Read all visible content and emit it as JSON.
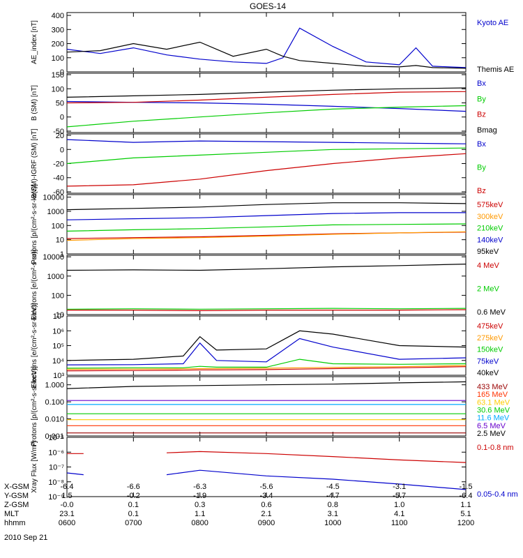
{
  "title": "GOES-14",
  "footer": {
    "rows": [
      {
        "label": "X-GSM",
        "values": [
          "-6.4",
          "-6.6",
          "-6.3",
          "-5.6",
          "-4.5",
          "-3.1",
          "-1.5"
        ]
      },
      {
        "label": "Y-GSM",
        "values": [
          "1.5",
          "-0.2",
          "-1.9",
          "-3.4",
          "-4.7",
          "-5.7",
          "-6.4"
        ]
      },
      {
        "label": "Z-GSM",
        "values": [
          "-0.0",
          "0.1",
          "0.3",
          "0.6",
          "0.8",
          "1.0",
          "1.1"
        ]
      },
      {
        "label": "MLT",
        "values": [
          "23.1",
          "0.1",
          "1.1",
          "2.1",
          "3.1",
          "4.1",
          "5.1"
        ]
      },
      {
        "label": "hhmm",
        "values": [
          "0600",
          "0700",
          "0800",
          "0900",
          "1000",
          "1100",
          "1200"
        ]
      }
    ],
    "date": "2010 Sep 21"
  },
  "chart_data": [
    {
      "type": "line",
      "ylabel": "AE_index [nT]",
      "yticks": [
        "400",
        "300",
        "200",
        "100",
        "0"
      ],
      "ylim": [
        0,
        420
      ],
      "x": [
        "0600",
        "0630",
        "0700",
        "0730",
        "0800",
        "0830",
        "0900",
        "0915",
        "0930",
        "1000",
        "1030",
        "1100",
        "1115",
        "1130",
        "1200"
      ],
      "series": [
        {
          "name": "Kyoto AE",
          "color": "#0000cc",
          "values": [
            160,
            130,
            170,
            120,
            90,
            70,
            60,
            100,
            310,
            180,
            70,
            50,
            170,
            40,
            30
          ]
        },
        {
          "name": "Themis AE",
          "color": "#000000",
          "values": [
            140,
            150,
            200,
            160,
            210,
            110,
            160,
            110,
            80,
            60,
            40,
            35,
            45,
            30,
            25
          ]
        }
      ]
    },
    {
      "type": "line",
      "ylabel": "B (SM) [nT]",
      "yticks": [
        "150",
        "100",
        "50",
        "0",
        "-50"
      ],
      "ylim": [
        -55,
        155
      ],
      "x": [
        "0600",
        "0700",
        "0800",
        "0900",
        "1000",
        "1100",
        "1200"
      ],
      "series": [
        {
          "name": "Bx",
          "color": "#0000cc",
          "values": [
            55,
            52,
            50,
            45,
            38,
            30,
            20
          ]
        },
        {
          "name": "By",
          "color": "#00cc00",
          "values": [
            -35,
            -15,
            0,
            15,
            28,
            35,
            40
          ]
        },
        {
          "name": "Bz",
          "color": "#cc0000",
          "values": [
            50,
            52,
            60,
            70,
            80,
            88,
            90
          ]
        },
        {
          "name": "Bmag",
          "color": "#000000",
          "values": [
            70,
            75,
            80,
            88,
            95,
            100,
            103
          ]
        }
      ]
    },
    {
      "type": "line",
      "ylabel": "B(SM)-IGRF (SM) [nT]",
      "yticks": [
        "20",
        "0",
        "-20",
        "-40",
        "-60"
      ],
      "ylim": [
        -62,
        22
      ],
      "x": [
        "0600",
        "0700",
        "0800",
        "0900",
        "1000",
        "1100",
        "1200"
      ],
      "series": [
        {
          "name": "Bx",
          "color": "#0000cc",
          "values": [
            14,
            10,
            12,
            11,
            10,
            9,
            8
          ]
        },
        {
          "name": "By",
          "color": "#00cc00",
          "values": [
            -20,
            -12,
            -8,
            -4,
            0,
            1,
            2
          ]
        },
        {
          "name": "Bz",
          "color": "#cc0000",
          "values": [
            -52,
            -50,
            -42,
            -30,
            -20,
            -12,
            -6
          ]
        }
      ]
    },
    {
      "type": "line",
      "log": true,
      "ylabel": "Protons [p/(cm²-s-sr-keV)]",
      "yticks": [
        "10000",
        "1000",
        "100",
        "10",
        "1"
      ],
      "ylim": [
        1,
        15000
      ],
      "x": [
        "0600",
        "0700",
        "0800",
        "0900",
        "1000",
        "1100",
        "1200"
      ],
      "series": [
        {
          "name": "575keV",
          "color": "#cc0000",
          "values": [
            12,
            14,
            16,
            20,
            26,
            30,
            34
          ]
        },
        {
          "name": "300keV",
          "color": "#ff9900",
          "values": [
            9,
            12,
            14,
            18,
            24,
            30,
            36
          ]
        },
        {
          "name": "210keV",
          "color": "#00cc00",
          "values": [
            40,
            50,
            60,
            80,
            110,
            120,
            130
          ]
        },
        {
          "name": "140keV",
          "color": "#0000cc",
          "values": [
            250,
            300,
            350,
            500,
            700,
            800,
            800
          ]
        },
        {
          "name": "95keV",
          "color": "#000000",
          "values": [
            1300,
            1600,
            2000,
            3000,
            4000,
            4000,
            3500
          ]
        }
      ]
    },
    {
      "type": "line",
      "log": true,
      "ylabel": "Electrons [e/(cm²-s-sr)]",
      "yticks": [
        "10000",
        "1000",
        "100",
        "10"
      ],
      "ylim": [
        10,
        12000
      ],
      "x": [
        "0600",
        "0700",
        "0800",
        "0900",
        "1000",
        "1100",
        "1200"
      ],
      "series": [
        {
          "name": "4 MeV",
          "color": "#cc0000",
          "values": [
            17,
            17,
            16,
            17,
            17,
            17,
            18
          ]
        },
        {
          "name": "2 MeV",
          "color": "#00cc00",
          "values": [
            19,
            20,
            19,
            20,
            21,
            20,
            21
          ]
        },
        {
          "name": "0.6 MeV",
          "color": "#000000",
          "values": [
            2000,
            2100,
            2000,
            2400,
            3000,
            3500,
            4200
          ]
        }
      ]
    },
    {
      "type": "line",
      "log": true,
      "ylabel": "Electrons [e/(cm²-s-sr-keV)]",
      "yticks": [
        "10⁷",
        "10⁶",
        "10⁵",
        "10⁴",
        "10³"
      ],
      "ylim": [
        1000,
        10000000
      ],
      "x": [
        "0600",
        "0700",
        "0745",
        "0800",
        "0815",
        "0900",
        "0930",
        "1000",
        "1100",
        "1200"
      ],
      "series": [
        {
          "name": "475keV",
          "color": "#cc0000",
          "values": [
            2000,
            2100,
            2200,
            2300,
            2300,
            2400,
            2600,
            2800,
            3200,
            3800
          ]
        },
        {
          "name": "275keV",
          "color": "#ff9900",
          "values": [
            2500,
            2600,
            2700,
            2800,
            2800,
            3000,
            3200,
            3400,
            3800,
            4500
          ]
        },
        {
          "name": "150keV",
          "color": "#00cc00",
          "values": [
            3000,
            3200,
            3200,
            4000,
            3500,
            3500,
            12000,
            6000,
            5500,
            6000
          ]
        },
        {
          "name": "75keV",
          "color": "#0000cc",
          "values": [
            5000,
            5200,
            6000,
            150000,
            10000,
            8000,
            300000,
            80000,
            12000,
            15000
          ]
        },
        {
          "name": "40keV",
          "color": "#000000",
          "values": [
            10000,
            12000,
            20000,
            400000,
            50000,
            60000,
            1000000,
            600000,
            100000,
            80000
          ]
        }
      ]
    },
    {
      "type": "line",
      "log": true,
      "ylabel": "Protons [p/(cm²-s-sr-keV)]",
      "yticks": [
        "1.000",
        "0.100",
        "0.010",
        "0.001"
      ],
      "ylim": [
        0.001,
        3
      ],
      "x": [
        "0600",
        "0700",
        "0800",
        "0900",
        "1000",
        "1100",
        "1200"
      ],
      "series": [
        {
          "name": "433 MeV",
          "color": "#990000",
          "values": [
            0.0015,
            0.0015,
            0.0015,
            0.0015,
            0.0015,
            0.0015,
            0.0015
          ]
        },
        {
          "name": "165 MeV",
          "color": "#ff3300",
          "values": [
            0.004,
            0.004,
            0.004,
            0.004,
            0.004,
            0.004,
            0.004
          ]
        },
        {
          "name": "63.1 MeV",
          "color": "#ffcc00",
          "values": [
            0.009,
            0.009,
            0.009,
            0.009,
            0.009,
            0.009,
            0.009
          ]
        },
        {
          "name": "30.6 MeV",
          "color": "#00cc00",
          "values": [
            0.02,
            0.02,
            0.02,
            0.02,
            0.02,
            0.02,
            0.02
          ]
        },
        {
          "name": "11.6 MeV",
          "color": "#00aaff",
          "values": [
            0.07,
            0.07,
            0.07,
            0.07,
            0.07,
            0.07,
            0.07
          ]
        },
        {
          "name": "6.5 MeV",
          "color": "#6600cc",
          "values": [
            0.12,
            0.12,
            0.12,
            0.12,
            0.12,
            0.12,
            0.12
          ]
        },
        {
          "name": "2.5 MeV",
          "color": "#000000",
          "values": [
            0.6,
            0.8,
            0.9,
            1.0,
            1.1,
            1.3,
            1.5
          ]
        }
      ]
    },
    {
      "type": "line",
      "log": true,
      "ylabel": "Xray Flux [W/m²]",
      "yticks": [
        "10⁻⁵",
        "10⁻⁶",
        "10⁻⁷",
        "10⁻⁸",
        "10⁻⁹"
      ],
      "ylim": [
        1e-09,
        1e-05
      ],
      "x": [
        "0600",
        "0615",
        "0630",
        "0730",
        "0800",
        "0900",
        "1000",
        "1100",
        "1200"
      ],
      "series": [
        {
          "name": "0.1-0.8 nm",
          "color": "#cc0000",
          "values": [
            8e-07,
            8e-07,
            null,
            9e-07,
            1.1e-06,
            8e-07,
            5e-07,
            3e-07,
            2e-07
          ]
        },
        {
          "name": "0.05-0.4 nm",
          "color": "#0000cc",
          "values": [
            4e-08,
            3e-08,
            null,
            3e-08,
            6e-08,
            2.5e-08,
            1.5e-08,
            7e-09,
            3e-09
          ]
        }
      ]
    }
  ]
}
